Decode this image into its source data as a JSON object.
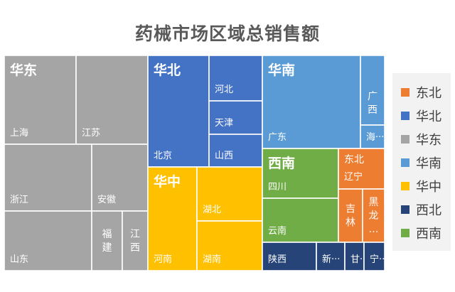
{
  "chart_data": {
    "type": "treemap",
    "title": "药械市场区域总销售额",
    "colors": {
      "东北": "#ed7d31",
      "华北": "#4472c4",
      "华东": "#a5a5a5",
      "华南": "#5b9bd5",
      "华中": "#ffc000",
      "西北": "#264478",
      "西南": "#70ad47"
    },
    "legend": [
      "东北",
      "华北",
      "华东",
      "华南",
      "华中",
      "西北",
      "西南"
    ],
    "legend_position": "right",
    "groups": [
      {
        "name": "华东",
        "items": [
          {
            "label": "上海",
            "value": 10.8
          },
          {
            "label": "江苏",
            "value": 10.3
          },
          {
            "label": "浙江",
            "value": 11.0
          },
          {
            "label": "安徽",
            "value": 4.9
          },
          {
            "label": "山东",
            "value": 11.2
          },
          {
            "label": "福建",
            "value": 3.7
          },
          {
            "label": "江西",
            "value": 3.6
          }
        ]
      },
      {
        "name": "华北",
        "items": [
          {
            "label": "北京",
            "value": 10.0
          },
          {
            "label": "河北",
            "value": 4.8
          },
          {
            "label": "天津",
            "value": 3.3
          },
          {
            "label": "山西",
            "value": 3.3
          }
        ]
      },
      {
        "name": "华中",
        "items": [
          {
            "label": "河南",
            "value": 8.7
          },
          {
            "label": "湖北",
            "value": 6.8
          },
          {
            "label": "湖南",
            "value": 6.0
          }
        ]
      },
      {
        "name": "华南",
        "items": [
          {
            "label": "广东",
            "value": 15.3
          },
          {
            "label": "广西",
            "value": 2.3
          },
          {
            "label": "海···",
            "value": 1.0
          }
        ]
      },
      {
        "name": "西南",
        "items": [
          {
            "label": "四川",
            "value": 6.4
          },
          {
            "label": "云南",
            "value": 4.9
          }
        ]
      },
      {
        "name": "东北",
        "items": [
          {
            "label": "辽宁",
            "value": 2.8
          },
          {
            "label": "吉林",
            "value": 1.5
          },
          {
            "label": "黑龙···",
            "value": 1.4
          }
        ]
      },
      {
        "name": "西北",
        "items": [
          {
            "label": "陕西",
            "value": 3.4
          },
          {
            "label": "新···",
            "value": 1.6
          },
          {
            "label": "甘···",
            "value": 1.0
          },
          {
            "label": "宁···",
            "value": 1.2
          }
        ]
      }
    ]
  }
}
